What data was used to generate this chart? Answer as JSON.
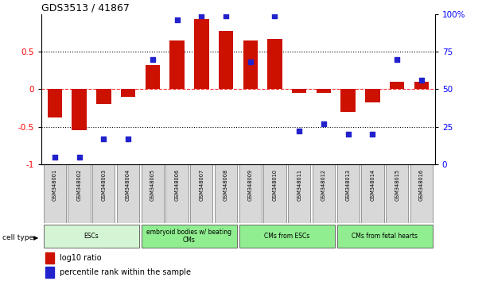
{
  "title": "GDS3513 / 41867",
  "samples": [
    "GSM348001",
    "GSM348002",
    "GSM348003",
    "GSM348004",
    "GSM348005",
    "GSM348006",
    "GSM348007",
    "GSM348008",
    "GSM348009",
    "GSM348010",
    "GSM348011",
    "GSM348012",
    "GSM348013",
    "GSM348014",
    "GSM348015",
    "GSM348016"
  ],
  "log10_ratio": [
    -0.38,
    -0.55,
    -0.2,
    -0.1,
    0.32,
    0.65,
    0.93,
    0.78,
    0.65,
    0.67,
    -0.05,
    -0.05,
    -0.3,
    -0.18,
    0.1,
    0.1
  ],
  "percentile_rank": [
    5,
    5,
    17,
    17,
    70,
    96,
    99,
    99,
    68,
    99,
    22,
    27,
    20,
    20,
    70,
    56
  ],
  "cell_types": [
    {
      "label": "ESCs",
      "start": 0,
      "end": 4,
      "color": "#d4f5d4"
    },
    {
      "label": "embryoid bodies w/ beating\nCMs",
      "start": 4,
      "end": 8,
      "color": "#90ee90"
    },
    {
      "label": "CMs from ESCs",
      "start": 8,
      "end": 12,
      "color": "#90ee90"
    },
    {
      "label": "CMs from fetal hearts",
      "start": 12,
      "end": 16,
      "color": "#90ee90"
    }
  ],
  "bar_color": "#cc1100",
  "dot_color": "#2222cc",
  "background_color": "#ffffff",
  "ylim_left": [
    -1.0,
    1.0
  ],
  "ylim_right": [
    0,
    100
  ],
  "cell_type_label": "cell type",
  "legend_ratio_label": "log10 ratio",
  "legend_pct_label": "percentile rank within the sample"
}
